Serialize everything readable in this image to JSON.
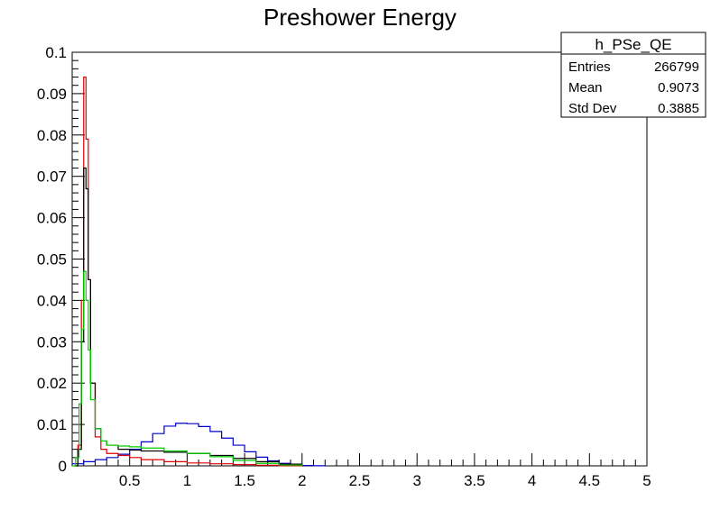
{
  "chart_data": {
    "type": "line",
    "title": "Preshower Energy",
    "xlabel": "",
    "ylabel": "",
    "xlim": [
      0.0,
      5.0
    ],
    "ylim": [
      0.0,
      0.1
    ],
    "x_ticks": [
      0.5,
      1,
      1.5,
      2,
      2.5,
      3,
      3.5,
      4,
      4.5,
      5
    ],
    "x_tick_labels": [
      "0.5",
      "1",
      "1.5",
      "2",
      "2.5",
      "3",
      "3.5",
      "4",
      "4.5",
      "5"
    ],
    "y_ticks": [
      0,
      0.01,
      0.02,
      0.03,
      0.04,
      0.05,
      0.06,
      0.07,
      0.08,
      0.09,
      0.1
    ],
    "y_tick_labels": [
      "0",
      "0.01",
      "0.02",
      "0.03",
      "0.04",
      "0.05",
      "0.06",
      "0.07",
      "0.08",
      "0.09",
      "0.1"
    ],
    "grid": false,
    "stats_box": {
      "title": "h_PSe_QE",
      "rows": [
        {
          "label": "Entries",
          "value": "266799"
        },
        {
          "label": "Mean",
          "value": "0.9073"
        },
        {
          "label": "Std Dev",
          "value": "0.3885"
        }
      ]
    },
    "series": [
      {
        "color": "#0000cc",
        "x": [
          0.0,
          0.1,
          0.2,
          0.3,
          0.4,
          0.5,
          0.6,
          0.7,
          0.8,
          0.9,
          1.0,
          1.1,
          1.2,
          1.3,
          1.4,
          1.5,
          1.6,
          1.7,
          1.8,
          1.9,
          2.0,
          2.1,
          2.2
        ],
        "y": [
          0.0005,
          0.001,
          0.0015,
          0.002,
          0.0028,
          0.004,
          0.0058,
          0.0078,
          0.0096,
          0.0103,
          0.0102,
          0.0095,
          0.0083,
          0.0067,
          0.005,
          0.0034,
          0.0021,
          0.0012,
          0.0006,
          0.0003,
          0.0001,
          3e-05,
          0.0
        ]
      },
      {
        "color": "#dd0000",
        "x": [
          0.02,
          0.05,
          0.08,
          0.1,
          0.12,
          0.14,
          0.16,
          0.2,
          0.25,
          0.3,
          0.4,
          0.5,
          0.6,
          0.8,
          1.0,
          1.2,
          1.4,
          1.6,
          1.8,
          2.0
        ],
        "y": [
          0.0,
          0.005,
          0.04,
          0.094,
          0.079,
          0.045,
          0.02,
          0.007,
          0.004,
          0.003,
          0.0025,
          0.002,
          0.0015,
          0.001,
          0.0007,
          0.0005,
          0.0003,
          0.00015,
          5e-05,
          0.0
        ]
      },
      {
        "color": "#000000",
        "x": [
          0.02,
          0.05,
          0.08,
          0.1,
          0.12,
          0.14,
          0.16,
          0.2,
          0.25,
          0.3,
          0.4,
          0.5,
          0.6,
          0.8,
          1.0,
          1.2,
          1.4,
          1.6,
          1.8,
          2.0
        ],
        "y": [
          0.0,
          0.004,
          0.03,
          0.072,
          0.067,
          0.045,
          0.02,
          0.009,
          0.006,
          0.005,
          0.004,
          0.0038,
          0.0036,
          0.0033,
          0.003,
          0.0025,
          0.0018,
          0.001,
          0.0004,
          0.0001
        ]
      },
      {
        "color": "#00cc00",
        "x": [
          0.0,
          0.03,
          0.06,
          0.08,
          0.1,
          0.12,
          0.14,
          0.16,
          0.2,
          0.25,
          0.3,
          0.4,
          0.5,
          0.6,
          0.8,
          1.0,
          1.2,
          1.4,
          1.6,
          1.8,
          2.0
        ],
        "y": [
          0.0,
          0.002,
          0.015,
          0.033,
          0.047,
          0.04,
          0.028,
          0.016,
          0.009,
          0.006,
          0.005,
          0.0048,
          0.0046,
          0.0043,
          0.0036,
          0.003,
          0.0022,
          0.0013,
          0.0006,
          0.0002,
          0.0
        ]
      }
    ]
  }
}
